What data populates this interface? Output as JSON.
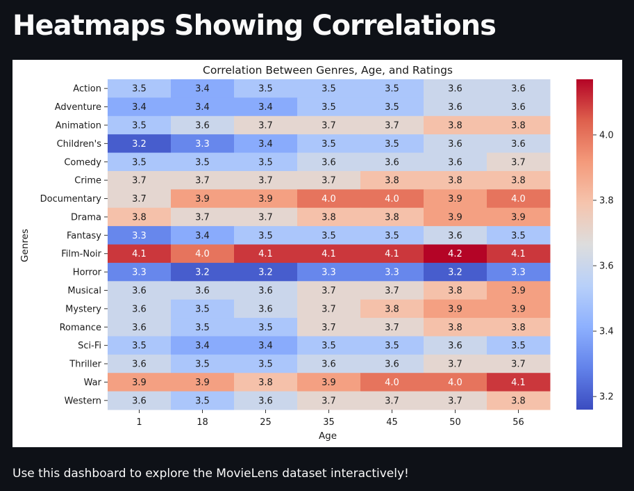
{
  "page": {
    "heading": "Heatmaps Showing Correlations",
    "footer": "Use this dashboard to explore the MovieLens dataset interactively!"
  },
  "chart_data": {
    "type": "heatmap",
    "title": "Correlation Between Genres, Age, and Ratings",
    "xlabel": "Age",
    "ylabel": "Genres",
    "x": [
      "1",
      "18",
      "25",
      "35",
      "45",
      "50",
      "56"
    ],
    "y": [
      "Action",
      "Adventure",
      "Animation",
      "Children's",
      "Comedy",
      "Crime",
      "Documentary",
      "Drama",
      "Fantasy",
      "Film-Noir",
      "Horror",
      "Musical",
      "Mystery",
      "Romance",
      "Sci-Fi",
      "Thriller",
      "War",
      "Western"
    ],
    "values": [
      [
        3.5,
        3.4,
        3.5,
        3.5,
        3.5,
        3.6,
        3.6
      ],
      [
        3.4,
        3.4,
        3.4,
        3.5,
        3.5,
        3.6,
        3.6
      ],
      [
        3.5,
        3.6,
        3.7,
        3.7,
        3.7,
        3.8,
        3.8
      ],
      [
        3.2,
        3.3,
        3.4,
        3.5,
        3.5,
        3.6,
        3.6
      ],
      [
        3.5,
        3.5,
        3.5,
        3.6,
        3.6,
        3.6,
        3.7
      ],
      [
        3.7,
        3.7,
        3.7,
        3.7,
        3.8,
        3.8,
        3.8
      ],
      [
        3.7,
        3.9,
        3.9,
        4.0,
        4.0,
        3.9,
        4.0
      ],
      [
        3.8,
        3.7,
        3.7,
        3.8,
        3.8,
        3.9,
        3.9
      ],
      [
        3.3,
        3.4,
        3.5,
        3.5,
        3.5,
        3.6,
        3.5
      ],
      [
        4.1,
        4.0,
        4.1,
        4.1,
        4.1,
        4.2,
        4.1
      ],
      [
        3.3,
        3.2,
        3.2,
        3.3,
        3.3,
        3.2,
        3.3
      ],
      [
        3.6,
        3.6,
        3.6,
        3.7,
        3.7,
        3.8,
        3.9
      ],
      [
        3.6,
        3.5,
        3.6,
        3.7,
        3.8,
        3.9,
        3.9
      ],
      [
        3.6,
        3.5,
        3.5,
        3.7,
        3.7,
        3.8,
        3.8
      ],
      [
        3.5,
        3.4,
        3.4,
        3.5,
        3.5,
        3.6,
        3.5
      ],
      [
        3.6,
        3.5,
        3.5,
        3.6,
        3.6,
        3.7,
        3.7
      ],
      [
        3.9,
        3.9,
        3.8,
        3.9,
        4.0,
        4.0,
        4.1
      ],
      [
        3.6,
        3.5,
        3.6,
        3.7,
        3.7,
        3.7,
        3.8
      ]
    ],
    "value_format": "1 decimal",
    "colormap": "coolwarm",
    "color_range": [
      3.16,
      4.17
    ],
    "colorbar_ticks": [
      "3.2",
      "3.4",
      "3.6",
      "3.8",
      "4.0"
    ],
    "grid": false,
    "legend": "colorbar-right"
  }
}
